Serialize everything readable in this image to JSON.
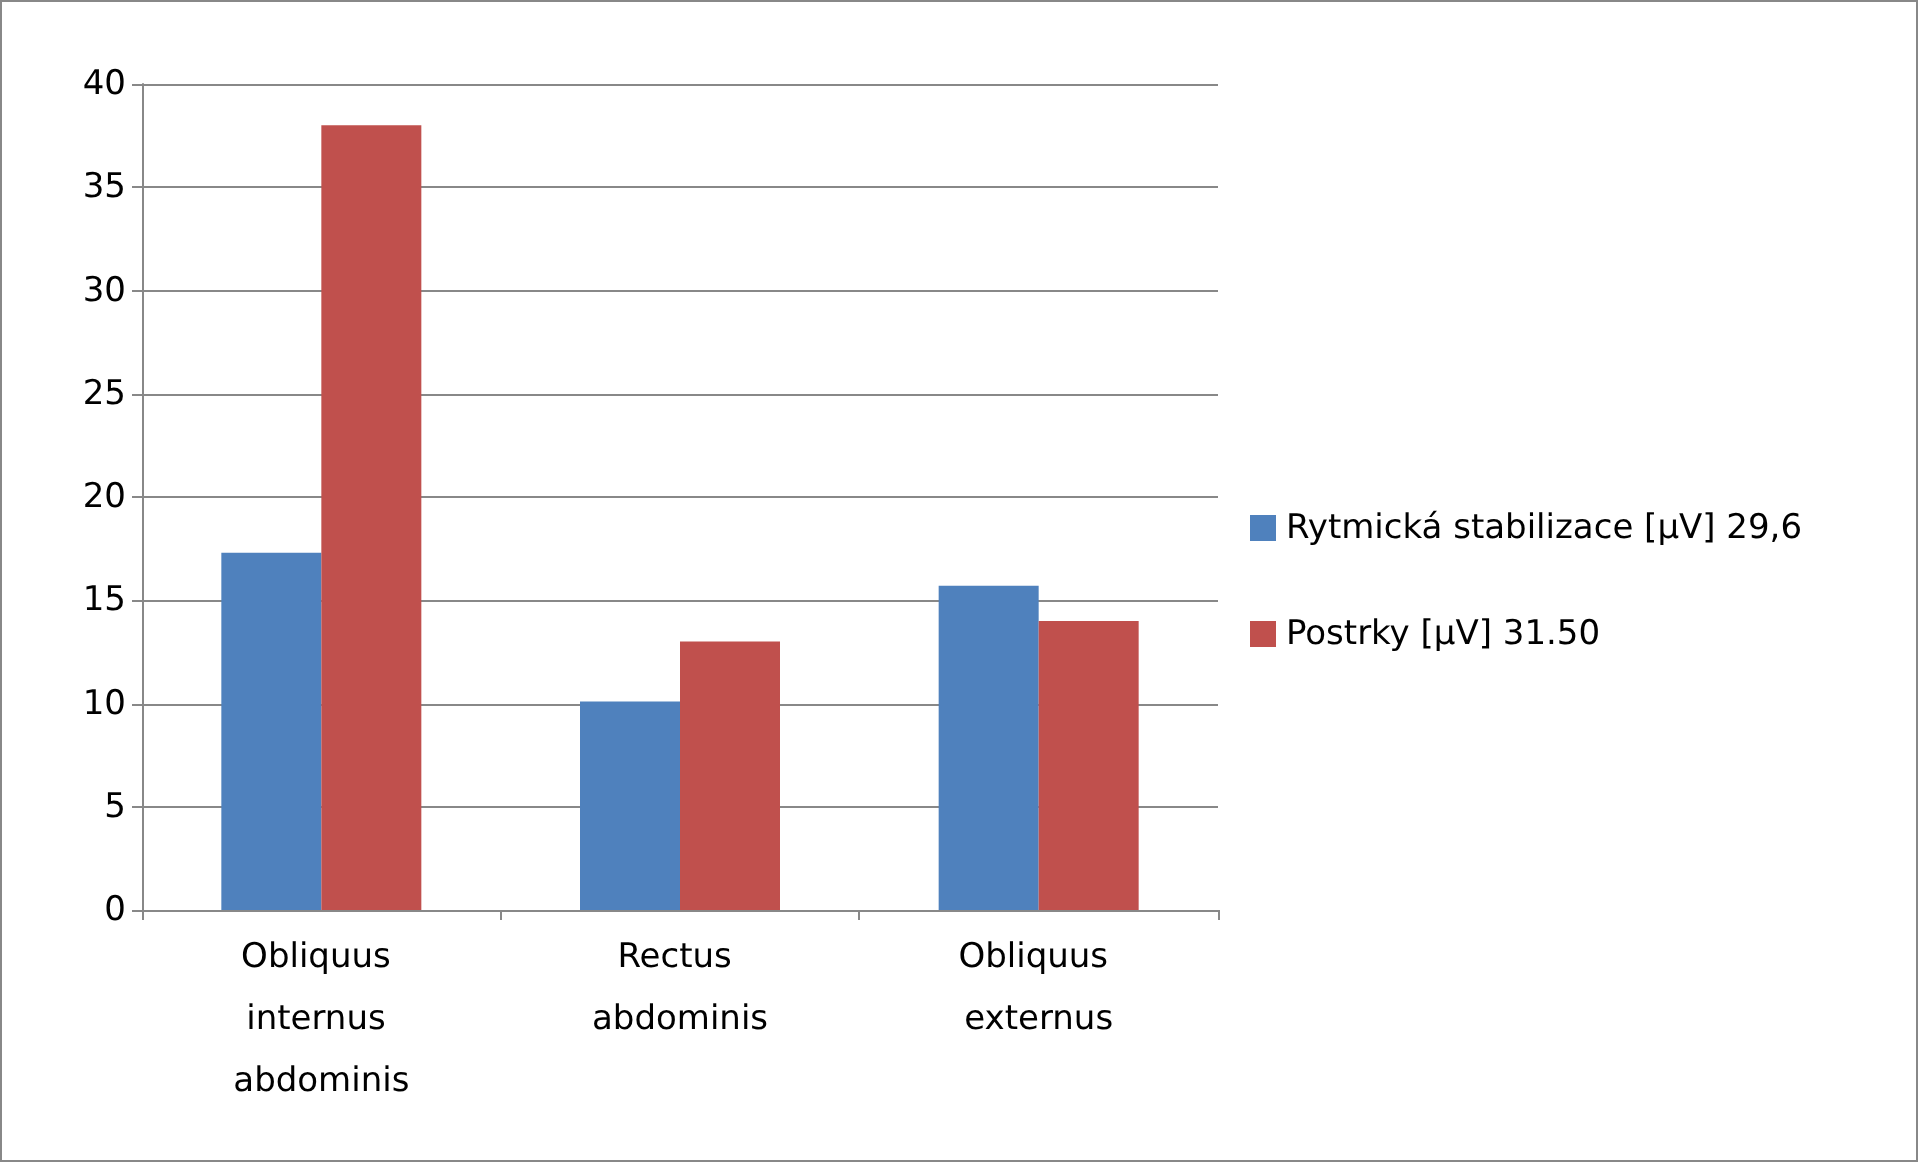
{
  "chart_data": {
    "type": "bar",
    "categories": [
      "Obliquus internus abdominis",
      "Rectus abdominis",
      "Obliquus externus"
    ],
    "series": [
      {
        "name": "Rytmická stabilizace [µV] 29,6",
        "color": "#4f81bd",
        "values": [
          17.3,
          10.1,
          15.7
        ]
      },
      {
        "name": "Postrky [µV] 31.50",
        "color": "#c0504d",
        "values": [
          38,
          13,
          14
        ]
      }
    ],
    "ylim": [
      0,
      40
    ],
    "yticks": [
      0,
      5,
      10,
      15,
      20,
      25,
      30,
      35,
      40
    ],
    "grid": "y",
    "legend": "right"
  }
}
